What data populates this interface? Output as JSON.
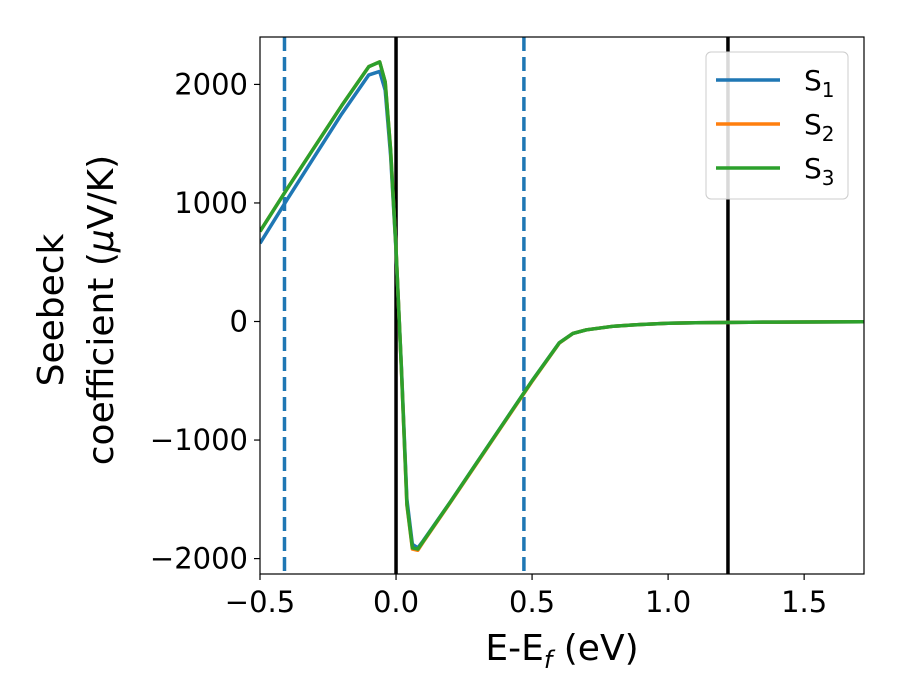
{
  "chart_data": {
    "type": "line",
    "xlabel_main": "E-E",
    "xlabel_sub": "f",
    "xlabel_unit": " (eV)",
    "ylabel_line1": "Seebeck",
    "ylabel_line2_pre": "coefficient  (",
    "ylabel_mu": "μ",
    "ylabel_line2_post": "V/K)",
    "xlim": [
      -0.5,
      1.72
    ],
    "ylim": [
      -2130,
      2400
    ],
    "xticks": [
      -0.5,
      0.0,
      0.5,
      1.0,
      1.5
    ],
    "xtick_labels": [
      "−0.5",
      "0.0",
      "0.5",
      "1.0",
      "1.5"
    ],
    "yticks": [
      -2000,
      -1000,
      0,
      1000,
      2000
    ],
    "ytick_labels": [
      "−2000",
      "−1000",
      "0",
      "1000",
      "2000"
    ],
    "grid": false,
    "legend_position": "top-right",
    "vlines": [
      {
        "x": -0.41,
        "style": "dashed",
        "color": "#1f77b4"
      },
      {
        "x": 0.0,
        "style": "solid",
        "color": "#000000"
      },
      {
        "x": 0.47,
        "style": "dashed",
        "color": "#1f77b4"
      },
      {
        "x": 1.22,
        "style": "solid",
        "color": "#000000"
      }
    ],
    "series": [
      {
        "name_main": "S",
        "name_sub": "1",
        "color": "#1f77b4",
        "x": [
          -0.5,
          -0.4,
          -0.3,
          -0.2,
          -0.1,
          -0.06,
          -0.04,
          -0.02,
          0.0,
          0.02,
          0.04,
          0.06,
          0.08,
          0.1,
          0.2,
          0.3,
          0.4,
          0.5,
          0.6,
          0.65,
          0.7,
          0.8,
          0.9,
          1.0,
          1.1,
          1.2,
          1.3,
          1.4,
          1.5,
          1.6,
          1.72
        ],
        "y": [
          660,
          1030,
          1390,
          1750,
          2080,
          2110,
          1950,
          1400,
          600,
          -400,
          -1500,
          -1880,
          -1910,
          -1850,
          -1520,
          -1180,
          -840,
          -500,
          -180,
          -100,
          -70,
          -40,
          -25,
          -15,
          -10,
          -8,
          -6,
          -5,
          -4,
          -3,
          -2
        ]
      },
      {
        "name_main": "S",
        "name_sub": "2",
        "color": "#ff7f0e",
        "x": [
          -0.5,
          -0.4,
          -0.3,
          -0.2,
          -0.1,
          -0.06,
          -0.04,
          -0.02,
          0.0,
          0.02,
          0.04,
          0.06,
          0.08,
          0.1,
          0.2,
          0.3,
          0.4,
          0.5,
          0.6,
          0.65,
          0.7,
          0.8,
          0.9,
          1.0,
          1.1,
          1.2,
          1.3,
          1.4,
          1.5,
          1.6,
          1.72
        ],
        "y": [
          760,
          1120,
          1470,
          1820,
          2150,
          2190,
          2020,
          1450,
          620,
          -420,
          -1550,
          -1920,
          -1930,
          -1860,
          -1525,
          -1185,
          -845,
          -505,
          -182,
          -100,
          -70,
          -40,
          -25,
          -15,
          -10,
          -8,
          -6,
          -5,
          -4,
          -3,
          -2
        ]
      },
      {
        "name_main": "S",
        "name_sub": "3",
        "color": "#2ca02c",
        "x": [
          -0.5,
          -0.4,
          -0.3,
          -0.2,
          -0.1,
          -0.06,
          -0.04,
          -0.02,
          0.0,
          0.02,
          0.04,
          0.06,
          0.08,
          0.1,
          0.2,
          0.3,
          0.4,
          0.5,
          0.6,
          0.65,
          0.7,
          0.8,
          0.9,
          1.0,
          1.1,
          1.2,
          1.3,
          1.4,
          1.5,
          1.6,
          1.72
        ],
        "y": [
          760,
          1120,
          1470,
          1820,
          2150,
          2190,
          2020,
          1450,
          620,
          -420,
          -1540,
          -1910,
          -1920,
          -1855,
          -1520,
          -1180,
          -840,
          -500,
          -180,
          -100,
          -70,
          -40,
          -25,
          -15,
          -10,
          -8,
          -6,
          -5,
          -4,
          -3,
          -2
        ]
      }
    ]
  }
}
